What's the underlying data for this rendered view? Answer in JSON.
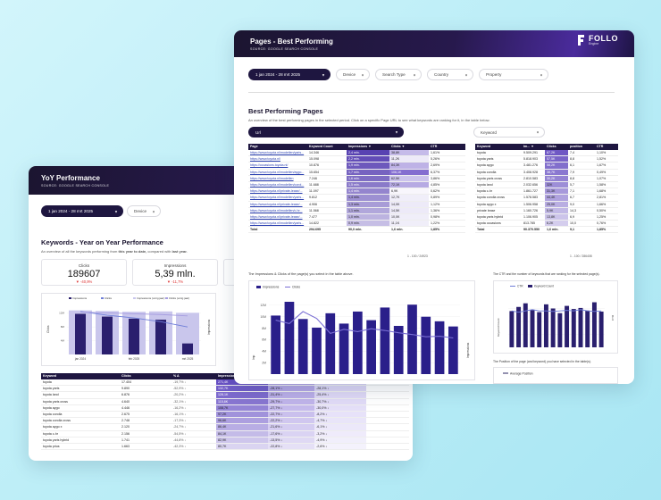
{
  "yoy": {
    "title": "YoY Performance",
    "source": "SOURCE: GOOGLE SEARCH CONSOLE",
    "date_range": "1 jan 2024 - 28 mrt 2025",
    "filter_device": "Device",
    "section_title": "Keywords - Year on Year Performance",
    "section_sub_prefix": "An overview of all the keywords performing from ",
    "section_sub_bold1": "this year to date,",
    "section_sub_mid": " compared with ",
    "section_sub_bold2": "last year.",
    "kpis": [
      {
        "label": "Clicks",
        "value": "189607",
        "delta": "▼ -40,9%"
      },
      {
        "label": "Impressions",
        "value": "5,39 mln.",
        "delta": "▼ -11,7%"
      }
    ],
    "chart_legend": [
      "Impressions",
      "Clicks",
      "Impressions (vorig jaar)",
      "Clicks (vorig jaar)"
    ],
    "table_headers": [
      "Keyword",
      "Clicks",
      "% Δ",
      "Impressions",
      "% Δ",
      "% Δ"
    ],
    "rows": [
      {
        "kw": "toyota",
        "clicks": "17.404",
        "d1": "-19,7% ↓",
        "imp": "271,4K",
        "d2": "-29,4% ↓",
        "d3": "-25,6% ↓"
      },
      {
        "kw": "toyota yaris",
        "clicks": "9.890",
        "d1": "-52,9% ↓",
        "imp": "132,7K",
        "d2": "-28,1% ↓",
        "d3": "-28,1% ↓"
      },
      {
        "kw": "toyota land",
        "clicks": "6.876",
        "d1": "-20,2% ↓",
        "imp": "128,1K",
        "d2": "-31,4% ↓",
        "d3": "-25,4% ↓"
      },
      {
        "kw": "toyota yaris cross",
        "clicks": "4.640",
        "d1": "-32,1% ↓",
        "imp": "115,8K",
        "d2": "-29,7% ↓",
        "d3": "-30,7% ↓"
      },
      {
        "kw": "toyota aygo",
        "clicks": "4.446",
        "d1": "-16,2% ↓",
        "imp": "108,7K",
        "d2": "-27,7% ↓",
        "d3": "-30,0% ↓"
      },
      {
        "kw": "toyota corolla",
        "clicks": "2.675",
        "d1": "-16,1% ↓",
        "imp": "97,2K",
        "d2": "-22,7% ↓",
        "d3": "-8,2% ↓"
      },
      {
        "kw": "toyota corolla cross",
        "clicks": "2.748",
        "d1": "-17,3% ↓",
        "imp": "96,6K",
        "d2": "-22,2% ↓",
        "d3": "-4,7% ↓"
      },
      {
        "kw": "toyota aygo x",
        "clicks": "2.120",
        "d1": "-24,7% ↓",
        "imp": "86,4K",
        "d2": "-21,6% ↓",
        "d3": "-6,1% ↓"
      },
      {
        "kw": "toyota c-hr",
        "clicks": "2.156",
        "d1": "-54,5% ↓",
        "imp": "84,1K",
        "d2": "-17,6% ↓",
        "d3": "-3,2% ↓"
      },
      {
        "kw": "toyota yaris hybrid",
        "clicks": "1.741",
        "d1": "-44,8% ↓",
        "imp": "82,9K",
        "d2": "-13,5% ↓",
        "d3": "-4,9% ↓"
      },
      {
        "kw": "toyota prius",
        "clicks": "1.663",
        "d1": "-42,3% ↓",
        "imp": "80,7K",
        "d2": "-22,8% ↓",
        "d3": "-2,6% ↓"
      }
    ]
  },
  "best": {
    "title": "Pages - Best Performing",
    "source": "SOURCE: GOOGLE SEARCH CONSOLE",
    "logo_text": "FOLLO",
    "logo_sub": "Engine",
    "date_range": "1 jan 2024 - 28 mrt 2025",
    "filters": [
      "Device",
      "Search Type",
      "Country",
      "Property"
    ],
    "section_title": "Best Performing Pages",
    "section_sub": "An overview of the best performing pages in the selected period. Click on a specific Page URL to see what keywords are ranking for it, in the table below.",
    "url_filter": "Url",
    "keyword_filter": "Keyword",
    "pages_headers": [
      "Page",
      "Keyword Count",
      "Impressions ▼",
      "Clicks ▼",
      "CTR"
    ],
    "pages_rows": [
      {
        "url": "https://www.toyota.nl/modellen/yaris...",
        "kc": "14.346",
        "imp": "2,4 mln.",
        "clk": "38,8K",
        "ctr": "1,61%"
      },
      {
        "url": "https://www.toyota.nl/",
        "kc": "15.098",
        "imp": "2,2 mln.",
        "clk": "11,2K",
        "ctr": "5,26%"
      },
      {
        "url": "https://occasions.toyota.nl/",
        "kc": "10.876",
        "imp": "1,9 mln.",
        "clk": "84,3K",
        "ctr": "2,69%"
      },
      {
        "url": "https://www.toyota.nl/modellen/aygo...",
        "kc": "15.654",
        "imp": "1,7 mln.",
        "clk": "106,1K",
        "ctr": "6,37%"
      },
      {
        "url": "https://www.toyota.nl/modellen",
        "kc": "7.246",
        "imp": "1,6 mln.",
        "clk": "62,5K",
        "ctr": "3,86%"
      },
      {
        "url": "https://www.toyota.nl/modellen/corol...",
        "kc": "11.688",
        "imp": "1,5 mln.",
        "clk": "72,1K",
        "ctr": "4,85%"
      },
      {
        "url": "https://www.toyota.nl/private-lease/...",
        "kc": "11.097",
        "imp": "1,4 mln.",
        "clk": "6,9K",
        "ctr": "0,62%"
      },
      {
        "url": "https://www.toyota.nl/modellen/yaris...",
        "kc": "9.812",
        "imp": "1,4 mln.",
        "clk": "12,7K",
        "ctr": "0,89%"
      },
      {
        "url": "https://www.toyota.nl/private-lease/...",
        "kc": "4.906",
        "imp": "1,3 mln.",
        "clk": "14,0K",
        "ctr": "1,12%"
      },
      {
        "url": "https://www.toyota.nl/modellen/c-hr...",
        "kc": "11.568",
        "imp": "1,1 mln.",
        "clk": "14,5K",
        "ctr": "1,36%"
      },
      {
        "url": "https://www.toyota.nl/private-lease/...",
        "kc": "7.477",
        "imp": "1,0 mln.",
        "clk": "10,0K",
        "ctr": "0,98%"
      },
      {
        "url": "https://www.toyota.nl/modellen/yaris...",
        "kc": "14.822",
        "imp": "0,9 mln.",
        "clk": "11,1K",
        "ctr": "1,22%"
      }
    ],
    "pages_total": {
      "label": "Total",
      "kc": "294.695",
      "imp": "90,0 mln.",
      "clk": "1,6 mln.",
      "ctr": "1,85%"
    },
    "pages_pagination": "1 - 100 / 24923",
    "kw_headers": [
      "Keyword",
      "Im... ▼",
      "Clicks",
      "position",
      "CTR"
    ],
    "kw_rows": [
      {
        "kw": "toyota",
        "im": "9.509.291",
        "cl": "67,2K",
        "pos": "7,4",
        "ctr": "1,10%"
      },
      {
        "kw": "toyota yaris",
        "im": "5.818.903",
        "cl": "57,5K",
        "pos": "8,8",
        "ctr": "1,52%"
      },
      {
        "kw": "toyota aygo",
        "im": "3.481.276",
        "cl": "58,2K",
        "pos": "6,1",
        "ctr": "1,67%"
      },
      {
        "kw": "toyota corolla",
        "im": "3.408.928",
        "cl": "38,7K",
        "pos": "7,9",
        "ctr": "0,49%"
      },
      {
        "kw": "toyota yaris cross",
        "im": "2.810.583",
        "cl": "30,2K",
        "pos": "8,8",
        "ctr": "1,07%"
      },
      {
        "kw": "toyota land",
        "im": "2.032.656",
        "cl": "32K",
        "pos": "5,7",
        "ctr": "1,58%"
      },
      {
        "kw": "toyota c-hr",
        "im": "1.861.727",
        "cl": "31,3K",
        "pos": "7,1",
        "ctr": "1,68%"
      },
      {
        "kw": "toyota corolla cross",
        "im": "1.578.583",
        "cl": "44,4K",
        "pos": "6,7",
        "ctr": "2,81%"
      },
      {
        "kw": "toyota aygo x",
        "im": "1.506.958",
        "cl": "25,0K",
        "pos": "9,0",
        "ctr": "1,66%"
      },
      {
        "kw": "private lease",
        "im": "1.160.726",
        "cl": "5,9K",
        "pos": "14,3",
        "ctr": "0,50%"
      },
      {
        "kw": "toyota yaris hybrid",
        "im": "1.106.905",
        "cl": "13,8K",
        "pos": "6,9",
        "ctr": "1,25%"
      },
      {
        "kw": "toyota occasions",
        "im": "813.785",
        "cl": "6,2K",
        "pos": "10,0",
        "ctr": "0,76%"
      }
    ],
    "kw_total": {
      "label": "Total",
      "im": "90.370.550",
      "cl": "1,6 mln.",
      "pos": "9,1",
      "ctr": "1,85%"
    },
    "kw_pagination": "1 - 100 / 286408",
    "chart1_title": "The Impressions & Clicks of the page(s) you select in the table above.",
    "chart1_legend": [
      "Impressions",
      "Clicks"
    ],
    "chart1_yticks": [
      "12M",
      "10M",
      "8M",
      "6M",
      "4M",
      "2M"
    ],
    "chart1_ylabel": "Imp",
    "chart1_ylabel_right": "Impressions",
    "chart2_title": "The CTR and the number of keywords that are ranking for the selected page(s).",
    "chart2_legend": [
      "CTR",
      "Keyword Count"
    ],
    "chart2_ylabel": "Keyword Count",
    "chart2_ylabel_right": "CTR",
    "chart3_title": "The Position of the page (and keyword) you have selected in the table(s).",
    "chart3_legend": [
      "Average Position"
    ]
  },
  "chart_data": [
    {
      "type": "bar",
      "categories": [
        "jan 2024",
        "",
        "feb 2025",
        "",
        "mrt 2025"
      ],
      "series": [
        {
          "name": "Impressions",
          "values": [
            11.8,
            11.0,
            10.4,
            10.1,
            3.2
          ]
        },
        {
          "name": "Clicks",
          "values": [
            12.5,
            11.4,
            10.6,
            9.5,
            8.0
          ]
        },
        {
          "name": "Impressions (vorig jaar)",
          "values": [
            12.8,
            12.6,
            12.4,
            12.5,
            12.1
          ]
        },
        {
          "name": "Clicks (vorig jaar)",
          "values": [
            12.3,
            12.1,
            11.8,
            11.6,
            11.2
          ]
        }
      ]
    },
    {
      "type": "bar",
      "series": [
        {
          "name": "Impressions",
          "values": [
            10.2,
            12.6,
            9.6,
            8.1,
            10.6,
            8.8,
            10.9,
            9.4,
            11.6,
            8.4,
            12.1,
            10.0,
            9.2,
            8.3
          ]
        },
        {
          "name": "Clicks",
          "values": [
            9.4,
            8.8,
            10.9,
            9.7,
            7.1,
            7.8,
            7.4,
            7.9,
            7.6,
            7.2,
            6.9,
            6.5,
            6.6,
            6.3
          ]
        }
      ],
      "yticks": [
        "12M",
        "10M",
        "8M",
        "6M",
        "4M",
        "2M"
      ]
    },
    {
      "type": "bar",
      "series": [
        {
          "name": "Keyword Count",
          "values": [
            70,
            78,
            85,
            72,
            68,
            83,
            75,
            66,
            80,
            74,
            76,
            71,
            87,
            69
          ]
        },
        {
          "name": "CTR",
          "values": [
            1.2,
            1.15,
            1.2,
            1.25,
            1.2,
            1.2,
            1.18,
            1.2,
            1.22,
            1.2,
            1.25,
            1.2,
            1.18,
            1.2
          ]
        }
      ]
    }
  ]
}
